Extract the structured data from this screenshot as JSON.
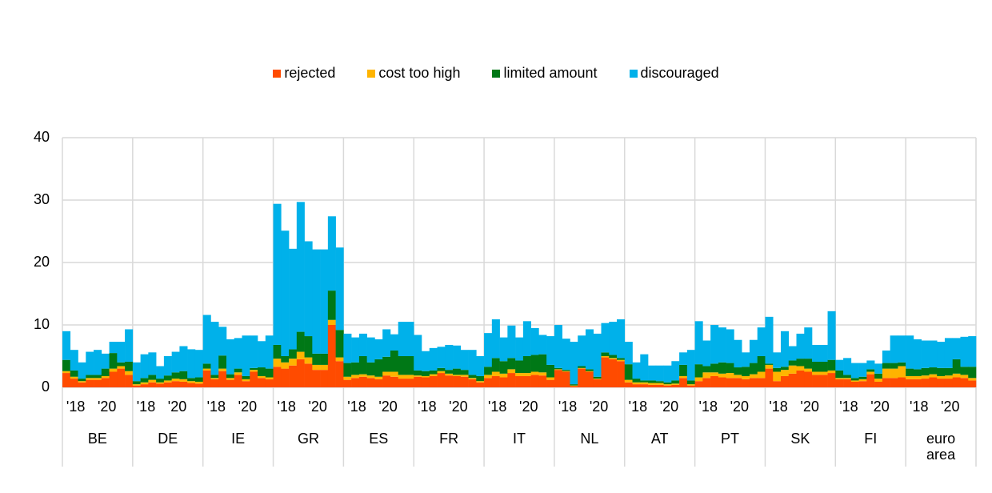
{
  "chart_data": {
    "type": "stacked-bar",
    "categories": [
      "BE",
      "DE",
      "IE",
      "GR",
      "ES",
      "FR",
      "IT",
      "NL",
      "AT",
      "PT",
      "SK",
      "FI",
      "euro area"
    ],
    "periods": [
      null,
      "'18",
      null,
      null,
      null,
      "'20",
      null,
      null,
      null
    ],
    "ylim": [
      0,
      40
    ],
    "yticks": [
      0,
      10,
      20,
      30,
      40
    ],
    "grid": true,
    "legend": "top",
    "series": [
      {
        "name": "rejected",
        "color": "#ff4b00",
        "values": [
          [
            2.3,
            1.4,
            0.8,
            1.2,
            1.2,
            1.5,
            2.5,
            3.0,
            2.0
          ],
          [
            0.3,
            0.5,
            0.8,
            0.6,
            0.8,
            1.0,
            0.9,
            0.7,
            0.6
          ],
          [
            2.7,
            1.3,
            2.6,
            1.2,
            2.0,
            1.0,
            2.5,
            1.5,
            1.3
          ],
          [
            3.3,
            3.0,
            3.5,
            4.5,
            3.8,
            2.8,
            2.8,
            10.0,
            4.2
          ],
          [
            1.2,
            1.5,
            1.7,
            1.5,
            1.3,
            1.9,
            1.7,
            1.4,
            1.4
          ],
          [
            1.7,
            1.6,
            1.8,
            2.3,
            1.9,
            1.8,
            1.7,
            1.3,
            0.8
          ],
          [
            1.5,
            1.8,
            1.6,
            2.3,
            1.8,
            1.8,
            2.0,
            1.9,
            1.2
          ],
          [
            2.8,
            2.5,
            0.2,
            3.0,
            2.5,
            1.3,
            4.8,
            4.5,
            4.2
          ],
          [
            0.8,
            0.5,
            0.5,
            0.4,
            0.4,
            0.3,
            0.4,
            1.5,
            0.3
          ],
          [
            1.0,
            1.5,
            1.8,
            1.6,
            1.5,
            1.5,
            1.3,
            1.5,
            1.5
          ],
          [
            3.0,
            1.0,
            1.8,
            2.2,
            2.7,
            2.5,
            2.0,
            2.0,
            2.3
          ],
          [
            1.3,
            1.3,
            0.9,
            1.0,
            2.1,
            0.9,
            1.5,
            1.5,
            1.6
          ],
          [
            1.3,
            1.3,
            1.4,
            1.6,
            1.4,
            1.4,
            1.6,
            1.5,
            1.1
          ]
        ]
      },
      {
        "name": "cost too high",
        "color": "#ffb400",
        "values": [
          [
            0.3,
            0.3,
            0.2,
            0.3,
            0.3,
            0.3,
            0.5,
            0.4,
            0.6
          ],
          [
            0.2,
            0.3,
            0.4,
            0.2,
            0.3,
            0.4,
            0.4,
            0.3,
            0.3
          ],
          [
            0.3,
            0.2,
            0.4,
            0.3,
            0.4,
            0.3,
            0.3,
            0.3,
            0.3
          ],
          [
            1.3,
            1.0,
            1.1,
            1.2,
            1.0,
            0.8,
            0.8,
            0.8,
            0.6
          ],
          [
            0.5,
            0.5,
            0.4,
            0.4,
            0.4,
            0.6,
            0.8,
            0.6,
            0.6
          ],
          [
            0.2,
            0.2,
            0.3,
            0.3,
            0.3,
            0.2,
            0.3,
            0.2,
            0.2
          ],
          [
            0.5,
            0.7,
            0.6,
            0.6,
            0.5,
            0.5,
            0.5,
            0.5,
            0.4
          ],
          [
            0.1,
            0.1,
            0.1,
            0.1,
            0.1,
            0.1,
            0.2,
            0.2,
            0.2
          ],
          [
            0.4,
            0.3,
            0.3,
            0.3,
            0.3,
            0.2,
            0.2,
            0.3,
            0.2
          ],
          [
            0.6,
            0.9,
            0.6,
            0.6,
            0.8,
            0.5,
            0.5,
            0.6,
            1.0
          ],
          [
            0.6,
            1.5,
            1.0,
            1.3,
            0.7,
            0.5,
            0.5,
            0.5,
            0.4
          ],
          [
            0.2,
            0.2,
            0.2,
            0.3,
            0.4,
            0.5,
            1.5,
            1.5,
            1.8
          ],
          [
            0.5,
            0.5,
            0.5,
            0.5,
            0.4,
            0.5,
            0.6,
            0.5,
            0.4
          ]
        ]
      },
      {
        "name": "limited amount",
        "color": "#007816",
        "values": [
          [
            1.8,
            1.0,
            0.4,
            0.5,
            0.5,
            1.2,
            2.5,
            0.6,
            1.5
          ],
          [
            0.5,
            0.7,
            0.8,
            0.6,
            0.8,
            1.0,
            1.3,
            0.5,
            0.7
          ],
          [
            0.8,
            0.5,
            2.1,
            0.6,
            0.6,
            0.5,
            0.3,
            1.4,
            1.4
          ],
          [
            2.2,
            1.0,
            1.5,
            3.2,
            3.4,
            1.8,
            1.8,
            4.7,
            4.4
          ],
          [
            2.2,
            2.0,
            2.9,
            2.1,
            2.8,
            2.4,
            3.4,
            3.0,
            3.0
          ],
          [
            0.8,
            0.8,
            0.6,
            0.5,
            0.6,
            1.0,
            0.8,
            0.5,
            0.8
          ],
          [
            1.3,
            2.2,
            2.0,
            1.8,
            2.0,
            2.7,
            2.7,
            2.9,
            2.0
          ],
          [
            0.2,
            0.2,
            0.2,
            0.3,
            0.3,
            0.3,
            0.6,
            0.5,
            0.3
          ],
          [
            2.5,
            0.6,
            0.3,
            0.4,
            0.3,
            0.3,
            0.5,
            1.8,
            0.6
          ],
          [
            2.1,
            1.0,
            1.4,
            1.8,
            1.6,
            1.2,
            1.5,
            1.8,
            2.5
          ],
          [
            0.2,
            0.6,
            0.5,
            0.8,
            1.2,
            1.6,
            1.6,
            1.6,
            1.7
          ],
          [
            1.2,
            0.5,
            0.4,
            0.4,
            0.4,
            0.8,
            0.9,
            0.9,
            0.6
          ],
          [
            1.2,
            1.1,
            1.2,
            1.1,
            1.3,
            1.2,
            2.3,
            1.3,
            1.8
          ]
        ]
      },
      {
        "name": "discouraged",
        "color": "#00b1ea",
        "values": [
          [
            4.6,
            3.3,
            2.6,
            3.7,
            4.0,
            2.4,
            1.8,
            3.3,
            5.2
          ],
          [
            3.0,
            3.8,
            3.6,
            2.0,
            3.1,
            3.3,
            4.0,
            4.6,
            4.4
          ],
          [
            7.8,
            8.5,
            4.6,
            5.6,
            4.9,
            6.5,
            5.2,
            4.2,
            5.3
          ],
          [
            22.6,
            20.1,
            16.1,
            20.8,
            15.2,
            16.7,
            16.7,
            11.9,
            13.2
          ],
          [
            4.7,
            4.0,
            3.6,
            4.0,
            3.2,
            4.4,
            2.6,
            5.5,
            5.5
          ],
          [
            5.7,
            3.2,
            3.6,
            3.4,
            4.0,
            3.7,
            3.2,
            4.0,
            3.2
          ],
          [
            5.4,
            6.2,
            3.8,
            5.2,
            3.7,
            5.6,
            4.3,
            3.1,
            4.6
          ],
          [
            6.9,
            5.0,
            6.8,
            4.9,
            6.4,
            6.9,
            4.7,
            5.3,
            6.2
          ],
          [
            3.6,
            2.6,
            4.2,
            2.4,
            2.5,
            2.7,
            3.1,
            2.0,
            4.9
          ],
          [
            6.9,
            4.1,
            6.2,
            5.6,
            5.4,
            4.4,
            2.3,
            3.7,
            4.6
          ],
          [
            7.5,
            2.5,
            5.7,
            2.3,
            4.0,
            5.0,
            2.7,
            2.7,
            7.8
          ],
          [
            1.7,
            2.7,
            2.4,
            2.2,
            1.4,
            1.6,
            2.0,
            4.4,
            4.3
          ],
          [
            5.3,
            4.8,
            4.4,
            4.3,
            4.2,
            4.8,
            3.4,
            4.8,
            4.9
          ]
        ]
      }
    ]
  }
}
